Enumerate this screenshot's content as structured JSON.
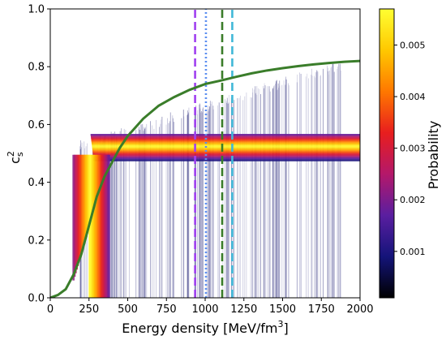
{
  "chart_data": [
    {
      "type": "line",
      "xlabel": "Energy density [MeV/fm",
      "xlabel_sup": "3",
      "xlabel_end": "]",
      "ylabel": "c",
      "ylabel_sup": "2",
      "ylabel_sub": "s",
      "xlim": [
        0,
        2000
      ],
      "ylim": [
        0.0,
        1.0
      ],
      "xticks": [
        "0",
        "250",
        "500",
        "750",
        "1000",
        "1250",
        "1500",
        "1750",
        "2000"
      ],
      "yticks": [
        "0.0",
        "0.2",
        "0.4",
        "0.6",
        "0.8",
        "1.0"
      ],
      "grid": false,
      "probability_band": {
        "plateau_low": 0.475,
        "plateau_high": 0.565,
        "onset_x_range": [
          150,
          380
        ],
        "lower_plateau_start_x": 280,
        "upper_plateau_start_x": 260,
        "end_x": 2000,
        "background_lines_max_x": 1880,
        "background_lines_top": 0.81
      },
      "series": [
        {
          "type": "line",
          "color": "#3a7d2a",
          "x": [
            0,
            50,
            100,
            150,
            200,
            250,
            300,
            350,
            400,
            450,
            500,
            550,
            600,
            700,
            800,
            900,
            1000,
            1100,
            1200,
            1300,
            1400,
            1500,
            1600,
            1700,
            1800,
            1900,
            2000
          ],
          "y": [
            0.0,
            0.01,
            0.03,
            0.08,
            0.15,
            0.25,
            0.35,
            0.42,
            0.47,
            0.52,
            0.56,
            0.59,
            0.62,
            0.665,
            0.695,
            0.72,
            0.74,
            0.752,
            0.765,
            0.777,
            0.787,
            0.795,
            0.802,
            0.808,
            0.813,
            0.817,
            0.82
          ]
        }
      ],
      "vlines": [
        {
          "x": 935,
          "color": "#a040f0",
          "style": "dashed"
        },
        {
          "x": 1005,
          "color": "#5a8df0",
          "style": "dotted"
        },
        {
          "x": 1110,
          "color": "#3a7d2a",
          "style": "dashed"
        },
        {
          "x": 1175,
          "color": "#40b8d8",
          "style": "dashed"
        }
      ]
    },
    {
      "type": "heatmap",
      "colorbar_label": "Probability",
      "colorbar_ticks": [
        "0.001",
        "0.002",
        "0.003",
        "0.004",
        "0.005"
      ],
      "colorbar_min": 0.0001,
      "colorbar_max": 0.0057,
      "colormap_stops": [
        "#000000",
        "#14147a",
        "#5a1ea0",
        "#b4186a",
        "#e81e1e",
        "#ff7800",
        "#ffc800",
        "#ffff32"
      ]
    }
  ]
}
